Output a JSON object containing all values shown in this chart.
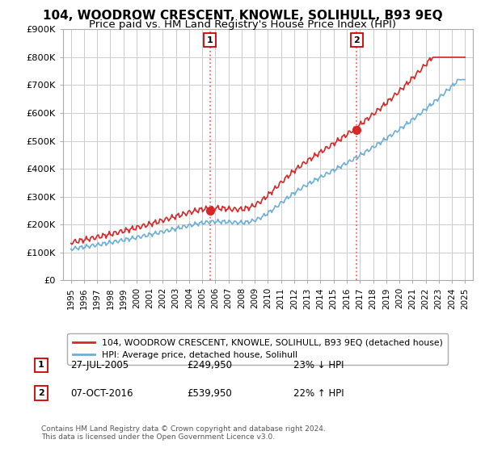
{
  "title": "104, WOODROW CRESCENT, KNOWLE, SOLIHULL, B93 9EQ",
  "subtitle": "Price paid vs. HM Land Registry's House Price Index (HPI)",
  "ylim": [
    0,
    900000
  ],
  "yticks": [
    0,
    100000,
    200000,
    300000,
    400000,
    500000,
    600000,
    700000,
    800000,
    900000
  ],
  "ytick_labels": [
    "£0",
    "£100K",
    "£200K",
    "£300K",
    "£400K",
    "£500K",
    "£600K",
    "£700K",
    "£800K",
    "£900K"
  ],
  "sale1_x": 2005.575,
  "sale1_price": 249950,
  "sale1_label": "1",
  "sale1_date_str": "27-JUL-2005",
  "sale1_price_str": "£249,950",
  "sale1_pct_str": "23% ↓ HPI",
  "sale2_x": 2016.769,
  "sale2_price": 539950,
  "sale2_label": "2",
  "sale2_date_str": "07-OCT-2016",
  "sale2_price_str": "£539,950",
  "sale2_pct_str": "22% ↑ HPI",
  "hpi_line_color": "#6baed6",
  "price_line_color": "#d62728",
  "marker_color": "#d62728",
  "vline_color": "#ff6666",
  "background_color": "#ffffff",
  "grid_color": "#cccccc",
  "legend_label_red": "104, WOODROW CRESCENT, KNOWLE, SOLIHULL, B93 9EQ (detached house)",
  "legend_label_blue": "HPI: Average price, detached house, Solihull",
  "footer": "Contains HM Land Registry data © Crown copyright and database right 2024.\nThis data is licensed under the Open Government Licence v3.0.",
  "title_fontsize": 11,
  "subtitle_fontsize": 9.5,
  "xlim_left": 1994.4,
  "xlim_right": 2025.6
}
